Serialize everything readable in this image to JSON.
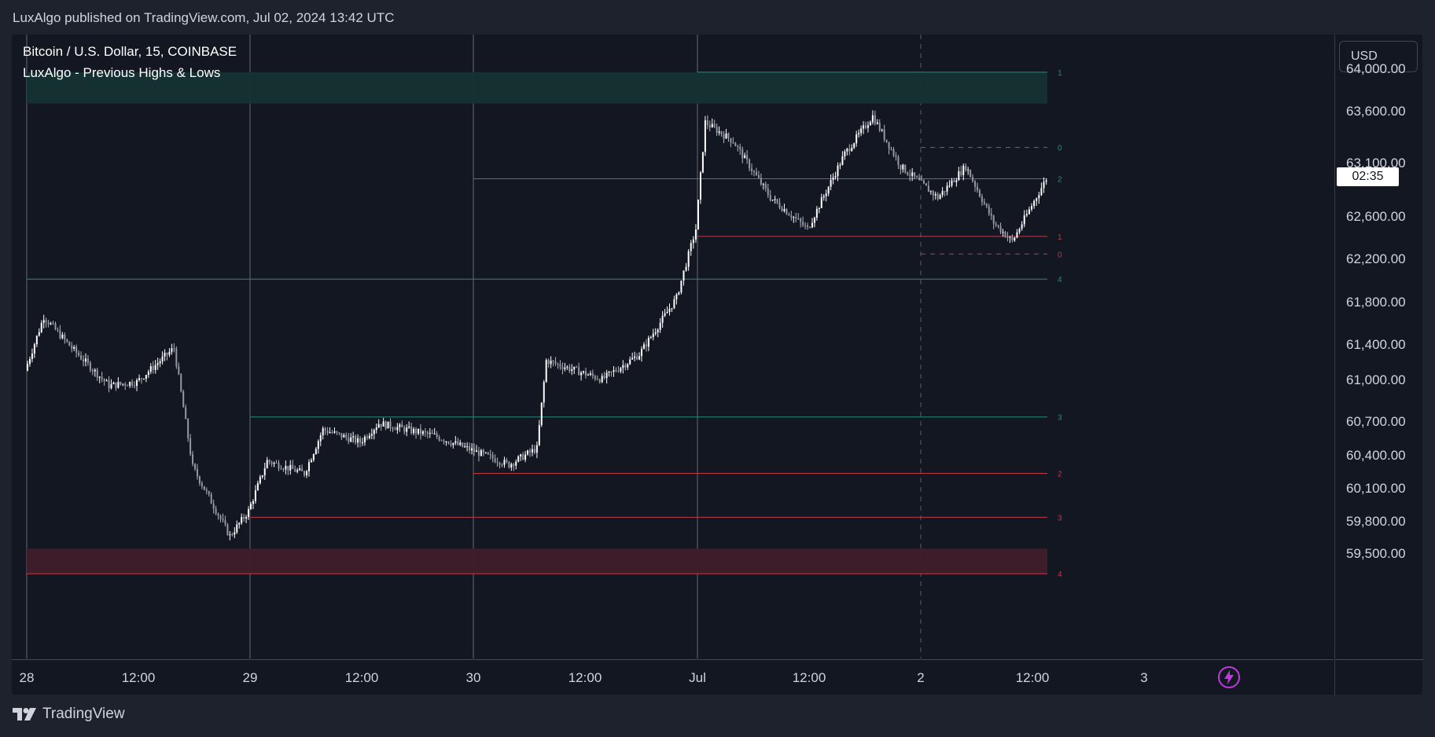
{
  "header": {
    "published": "LuxAlgo published on TradingView.com, Jul 02, 2024 13:42 UTC"
  },
  "legend": {
    "symbol": "Bitcoin / U.S. Dollar, 15, COINBASE",
    "indicator": "LuxAlgo - Previous Highs & Lows"
  },
  "price_axis": {
    "currency": "USD",
    "labels": [
      "64,000.00",
      "63,600.00",
      "63,100.00",
      "62,600.00",
      "62,200.00",
      "61,800.00",
      "61,400.00",
      "61,000.00",
      "60,700.00",
      "60,400.00",
      "60,100.00",
      "59,800.00",
      "59,500.00"
    ],
    "countdown": "02:35"
  },
  "time_axis": {
    "labels": [
      "28",
      "12:00",
      "29",
      "12:00",
      "30",
      "12:00",
      "Jul",
      "12:00",
      "2",
      "12:00",
      "3"
    ]
  },
  "footer": {
    "brand": "TradingView"
  },
  "colors": {
    "background": "#131722",
    "bull_zone": "#153232",
    "bear_zone": "#3f1d2a",
    "high_line": "#2a8a7a",
    "low_line": "#c33847"
  },
  "chart_data": {
    "type": "candlestick",
    "symbol": "BTCUSD",
    "timeframe": "15",
    "ylim": [
      59400,
      64100
    ],
    "x_labels": [
      "28",
      "12:00",
      "29",
      "12:00",
      "30",
      "12:00",
      "Jul",
      "12:00",
      "2",
      "12:00",
      "3"
    ],
    "series_close_approx": [
      {
        "t": "Jun 28 00:00",
        "price": 61470
      },
      {
        "t": "Jun 28 02:00",
        "price": 61900
      },
      {
        "t": "Jun 28 05:00",
        "price": 61650
      },
      {
        "t": "Jun 28 09:00",
        "price": 61350
      },
      {
        "t": "Jun 28 12:00",
        "price": 61380
      },
      {
        "t": "Jun 28 16:00",
        "price": 61650
      },
      {
        "t": "Jun 28 18:00",
        "price": 60700
      },
      {
        "t": "Jun 28 22:00",
        "price": 60150
      },
      {
        "t": "Jun 29 00:00",
        "price": 60350
      },
      {
        "t": "Jun 29 02:00",
        "price": 60750
      },
      {
        "t": "Jun 29 06:00",
        "price": 60650
      },
      {
        "t": "Jun 29 08:00",
        "price": 61000
      },
      {
        "t": "Jun 29 12:00",
        "price": 60900
      },
      {
        "t": "Jun 29 14:00",
        "price": 61050
      },
      {
        "t": "Jun 29 20:00",
        "price": 60950
      },
      {
        "t": "Jun 30 04:00",
        "price": 60720
      },
      {
        "t": "Jun 30 07:00",
        "price": 60850
      },
      {
        "t": "Jun 30 08:00",
        "price": 61550
      },
      {
        "t": "Jun 30 14:00",
        "price": 61400
      },
      {
        "t": "Jun 30 18:00",
        "price": 61600
      },
      {
        "t": "Jun 30 22:00",
        "price": 62050
      },
      {
        "t": "Jul 01 00:00",
        "price": 62600
      },
      {
        "t": "Jul 01 01:00",
        "price": 63450
      },
      {
        "t": "Jul 01 04:00",
        "price": 63300
      },
      {
        "t": "Jul 01 08:00",
        "price": 62850
      },
      {
        "t": "Jul 01 12:00",
        "price": 62600
      },
      {
        "t": "Jul 01 16:00",
        "price": 63200
      },
      {
        "t": "Jul 01 19:00",
        "price": 63500
      },
      {
        "t": "Jul 01 22:00",
        "price": 63100
      },
      {
        "t": "Jul 02 02:00",
        "price": 62850
      },
      {
        "t": "Jul 02 05:00",
        "price": 63100
      },
      {
        "t": "Jul 02 08:00",
        "price": 62650
      },
      {
        "t": "Jul 02 10:00",
        "price": 62500
      },
      {
        "t": "Jul 02 13:40",
        "price": 63000
      }
    ],
    "levels": {
      "highs": [
        {
          "label": "1",
          "price": 63850
        },
        {
          "label": "0",
          "price": 63250
        },
        {
          "label": "2",
          "price": 63000
        },
        {
          "label": "4",
          "price": 62200
        },
        {
          "label": "3",
          "price": 61100
        }
      ],
      "lows": [
        {
          "label": "1",
          "price": 62540
        },
        {
          "label": "0",
          "price": 62400
        },
        {
          "label": "2",
          "price": 60650
        },
        {
          "label": "3",
          "price": 60300
        },
        {
          "label": "4",
          "price": 59850
        }
      ]
    },
    "zones": [
      {
        "kind": "premium",
        "from": 63600,
        "to": 63850
      },
      {
        "kind": "discount",
        "from": 59850,
        "to": 60050
      }
    ],
    "grid": false
  }
}
